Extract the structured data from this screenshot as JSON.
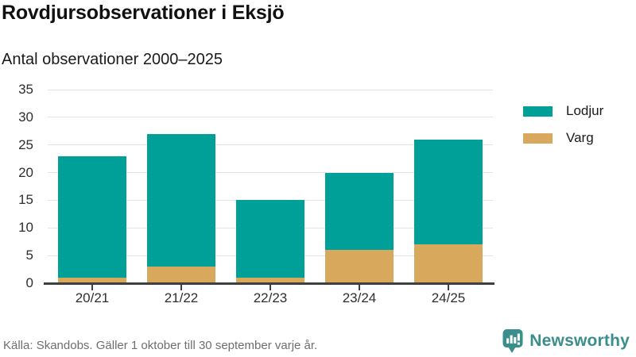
{
  "header": {
    "title": "Rovdjursobservationer i Eksjö",
    "subtitle": "Antal observationer 2000–2025"
  },
  "footer": {
    "source": "Källa: Skandobs. Gäller 1 oktober till 30 september varje år."
  },
  "branding": {
    "name": "Newsworthy",
    "color": "#3a8e8c"
  },
  "colors": {
    "lodjur": "#00a099",
    "varg": "#d8a95c",
    "grid": "#e4e4e4",
    "axis": "#3f3f3f",
    "text": "#1a1a1a",
    "muted": "#6e6e6e"
  },
  "chart_data": {
    "type": "bar",
    "stacked": true,
    "title": "Rovdjursobservationer i Eksjö",
    "subtitle": "Antal observationer 2000–2025",
    "categories": [
      "20/21",
      "21/22",
      "22/23",
      "23/24",
      "24/25"
    ],
    "series": [
      {
        "name": "Varg",
        "color": "#d8a95c",
        "values": [
          1,
          3,
          1,
          6,
          7
        ]
      },
      {
        "name": "Lodjur",
        "color": "#00a099",
        "values": [
          22,
          24,
          14,
          14,
          19
        ]
      }
    ],
    "totals": [
      23,
      27,
      15,
      20,
      26
    ],
    "xlabel": "",
    "ylabel": "",
    "ylim": [
      0,
      35
    ],
    "y_ticks": [
      0,
      5,
      10,
      15,
      20,
      25,
      30,
      35
    ],
    "grid": true,
    "legend_position": "right",
    "legend": [
      {
        "label": "Lodjur",
        "color": "#00a099"
      },
      {
        "label": "Varg",
        "color": "#d8a95c"
      }
    ]
  }
}
